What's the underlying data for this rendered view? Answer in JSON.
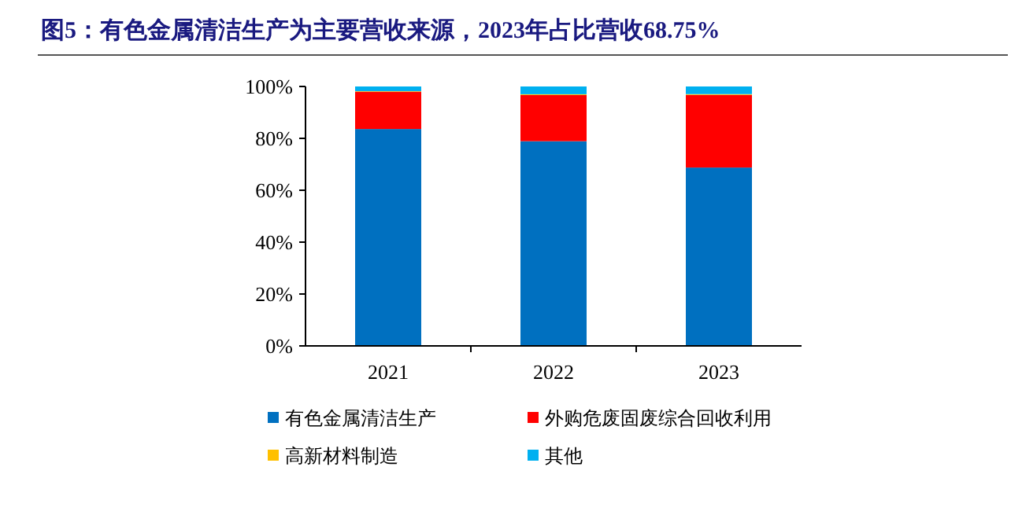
{
  "chart_data": {
    "type": "bar",
    "stacked": true,
    "title": "图5：有色金属清洁生产为主要营收来源，2023年占比营收68.75%",
    "categories": [
      "2021",
      "2022",
      "2023"
    ],
    "series": [
      {
        "name": "有色金属清洁生产",
        "color": "#0070c0",
        "values": [
          83.6,
          78.9,
          68.75
        ]
      },
      {
        "name": "外购危废固废综合回收利用",
        "color": "#ff0000",
        "values": [
          14.4,
          17.8,
          28.0
        ]
      },
      {
        "name": "高新材料制造",
        "color": "#ffc000",
        "values": [
          0.2,
          0.3,
          0.3
        ]
      },
      {
        "name": "其他",
        "color": "#00b0f0",
        "values": [
          1.8,
          3.0,
          2.95
        ]
      }
    ],
    "ylim": [
      0,
      100
    ],
    "yticks": [
      {
        "value": 0,
        "label": "0%"
      },
      {
        "value": 20,
        "label": "20%"
      },
      {
        "value": 40,
        "label": "40%"
      },
      {
        "value": 60,
        "label": "60%"
      },
      {
        "value": 80,
        "label": "80%"
      },
      {
        "value": 100,
        "label": "100%"
      }
    ],
    "legend": "bottom"
  }
}
